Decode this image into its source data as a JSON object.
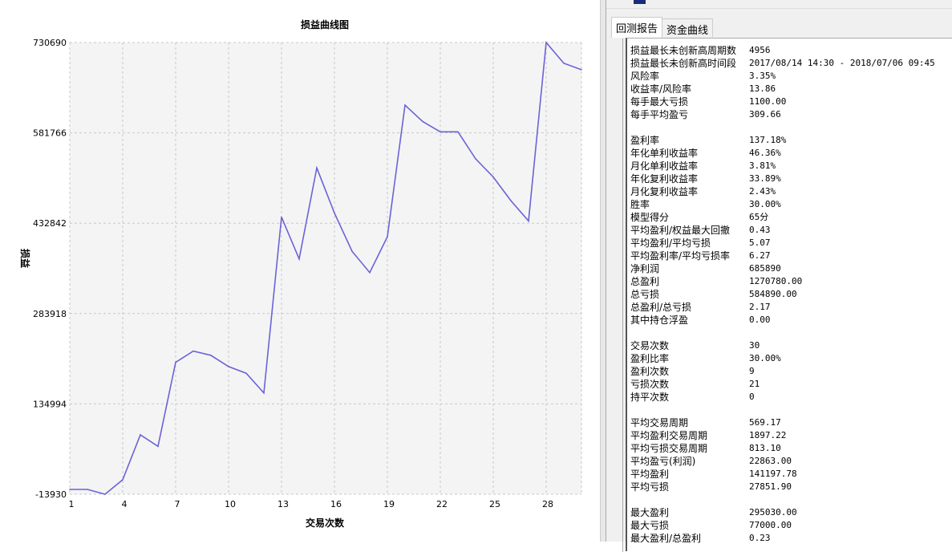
{
  "chart_data": {
    "type": "line",
    "title": "损益曲线图",
    "xlabel": "交易次数",
    "ylabel": "损益",
    "xlim": [
      1,
      30
    ],
    "ylim": [
      -13930,
      730690
    ],
    "yticks": [
      -13930,
      134994,
      283918,
      432842,
      581766,
      730690
    ],
    "xticks": [
      1,
      4,
      7,
      10,
      13,
      16,
      19,
      22,
      25,
      28
    ],
    "grid": true,
    "line_color": "#6a63d6",
    "plot_bg": "#f4f4f4",
    "x": [
      1,
      2,
      3,
      4,
      5,
      6,
      7,
      8,
      9,
      10,
      11,
      12,
      13,
      14,
      15,
      16,
      17,
      18,
      19,
      20,
      21,
      22,
      23,
      24,
      25,
      26,
      27,
      28,
      29,
      30
    ],
    "values": [
      -6000,
      -6000,
      -13930,
      10000,
      84000,
      65000,
      203500,
      222000,
      215000,
      196500,
      185500,
      153000,
      443000,
      374000,
      524000,
      449500,
      386500,
      351500,
      410500,
      627500,
      600500,
      583500,
      583500,
      539000,
      509000,
      470000,
      436500,
      730690,
      696500,
      685890
    ]
  },
  "tabs": [
    {
      "label": "回测报告",
      "active": true
    },
    {
      "label": "资金曲线",
      "active": false
    }
  ],
  "report": [
    [
      "损益最长未创新高周期数",
      "4956"
    ],
    [
      "损益最长未创新高时间段",
      "2017/08/14 14:30 - 2018/07/06 09:45"
    ],
    [
      "风险率",
      "3.35%"
    ],
    [
      "收益率/风险率",
      "13.86"
    ],
    [
      "每手最大亏损",
      "1100.00"
    ],
    [
      "每手平均盈亏",
      "309.66"
    ],
    [
      "",
      ""
    ],
    [
      "盈利率",
      "137.18%"
    ],
    [
      "年化单利收益率",
      "46.36%"
    ],
    [
      "月化单利收益率",
      "3.81%"
    ],
    [
      "年化复利收益率",
      "33.89%"
    ],
    [
      "月化复利收益率",
      "2.43%"
    ],
    [
      "胜率",
      "30.00%"
    ],
    [
      "模型得分",
      "65分"
    ],
    [
      "平均盈利/权益最大回撤",
      "0.43"
    ],
    [
      "平均盈利/平均亏损",
      "5.07"
    ],
    [
      "平均盈利率/平均亏损率",
      "6.27"
    ],
    [
      "净利润",
      "685890"
    ],
    [
      "总盈利",
      "1270780.00"
    ],
    [
      "总亏损",
      "584890.00"
    ],
    [
      "总盈利/总亏损",
      "2.17"
    ],
    [
      "其中持仓浮盈",
      "0.00"
    ],
    [
      "",
      ""
    ],
    [
      "交易次数",
      "30"
    ],
    [
      "盈利比率",
      "30.00%"
    ],
    [
      "盈利次数",
      "9"
    ],
    [
      "亏损次数",
      "21"
    ],
    [
      "持平次数",
      "0"
    ],
    [
      "",
      ""
    ],
    [
      "平均交易周期",
      "569.17"
    ],
    [
      "平均盈利交易周期",
      "1897.22"
    ],
    [
      "平均亏损交易周期",
      "813.10"
    ],
    [
      "平均盈亏(利润)",
      "22863.00"
    ],
    [
      "平均盈利",
      "141197.78"
    ],
    [
      "平均亏损",
      "27851.90"
    ],
    [
      "",
      ""
    ],
    [
      "最大盈利",
      "295030.00"
    ],
    [
      "最大亏损",
      "77000.00"
    ],
    [
      "最大盈利/总盈利",
      "0.23"
    ]
  ]
}
